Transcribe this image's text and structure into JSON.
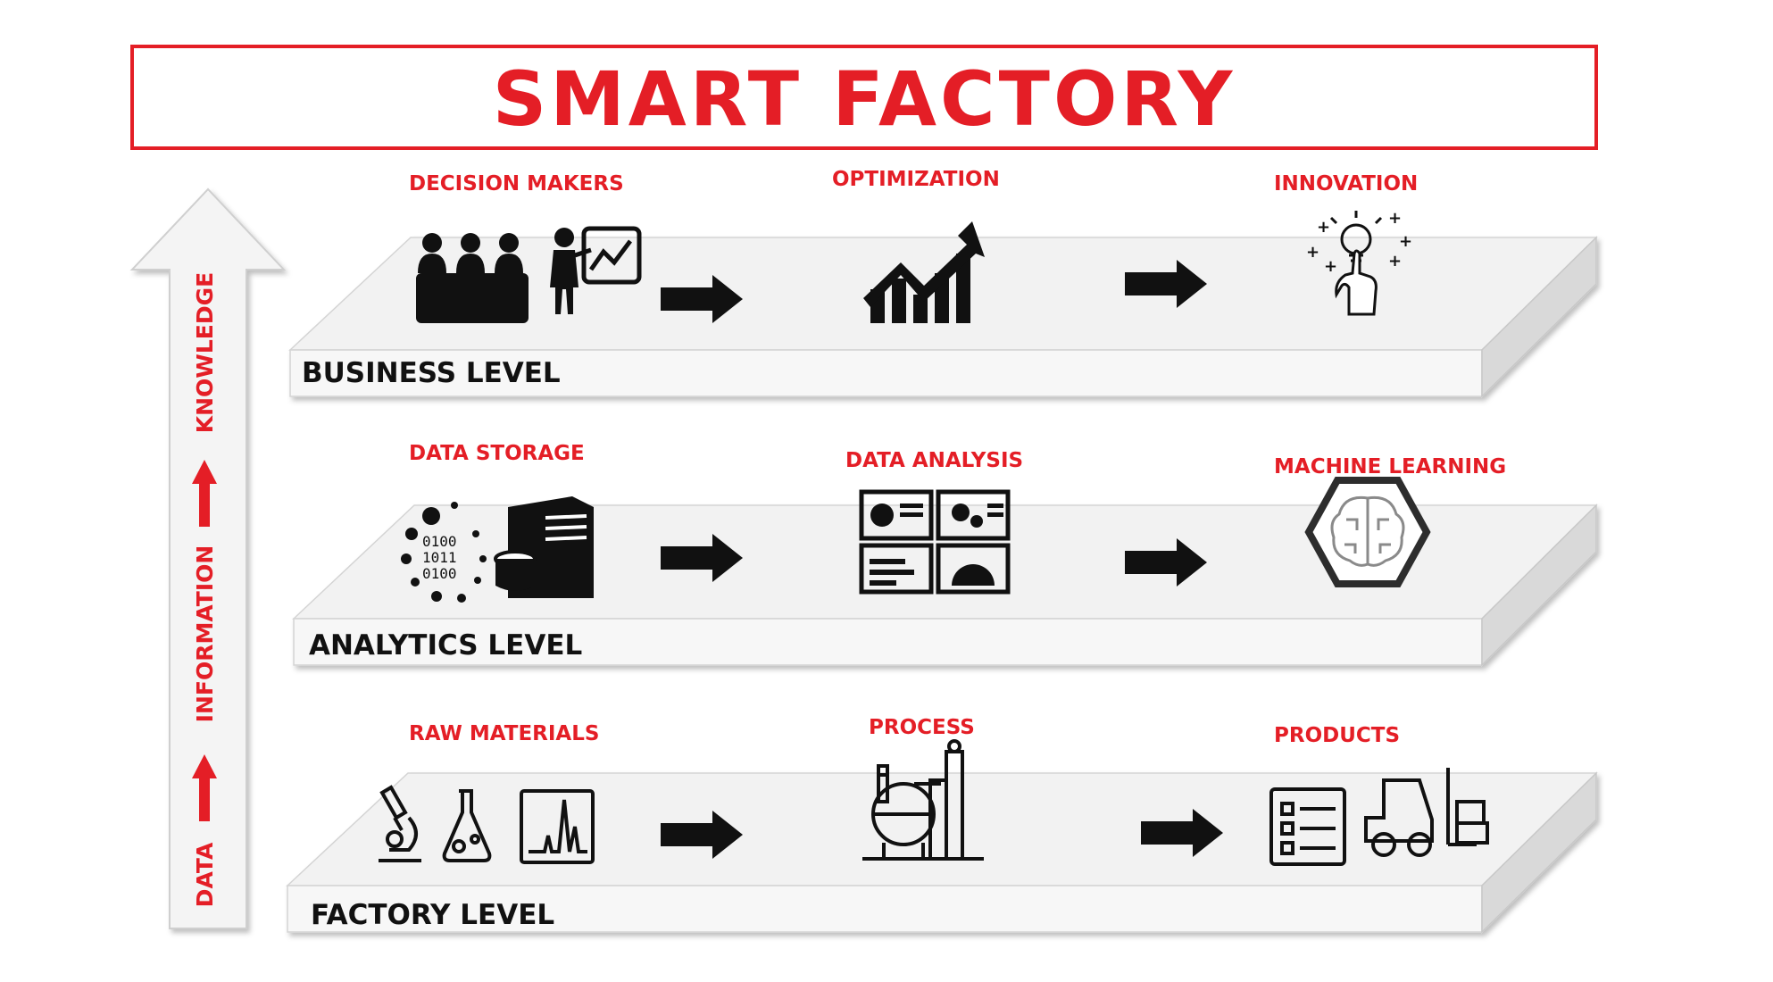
{
  "title": "SMART FACTORY",
  "axis": {
    "data": "DATA",
    "information": "INFORMATION",
    "knowledge": "KNOWLEDGE"
  },
  "levels": [
    {
      "name": "BUSINESS LEVEL",
      "items": [
        {
          "label": "DECISION MAKERS",
          "icon": "decision-makers-icon"
        },
        {
          "label": "OPTIMIZATION",
          "icon": "growth-chart-icon"
        },
        {
          "label": "INNOVATION",
          "icon": "lightbulb-hand-icon"
        }
      ]
    },
    {
      "name": "ANALYTICS LEVEL",
      "items": [
        {
          "label": "DATA STORAGE",
          "icon": "server-database-icon"
        },
        {
          "label": "DATA ANALYSIS",
          "icon": "dashboard-icon"
        },
        {
          "label": "MACHINE LEARNING",
          "icon": "brain-circuit-icon"
        }
      ]
    },
    {
      "name": "FACTORY LEVEL",
      "items": [
        {
          "label": "RAW MATERIALS",
          "icon": "lab-equipment-icon"
        },
        {
          "label": "PROCESS",
          "icon": "factory-plant-icon"
        },
        {
          "label": "PRODUCTS",
          "icon": "checklist-forklift-icon"
        }
      ]
    }
  ],
  "binary_text": [
    "0100",
    "1011",
    "0100"
  ],
  "colors": {
    "accent": "#e41e26",
    "platform_top": "#f2f2f2",
    "platform_side": "#d9d9d9",
    "icon": "#111111"
  }
}
